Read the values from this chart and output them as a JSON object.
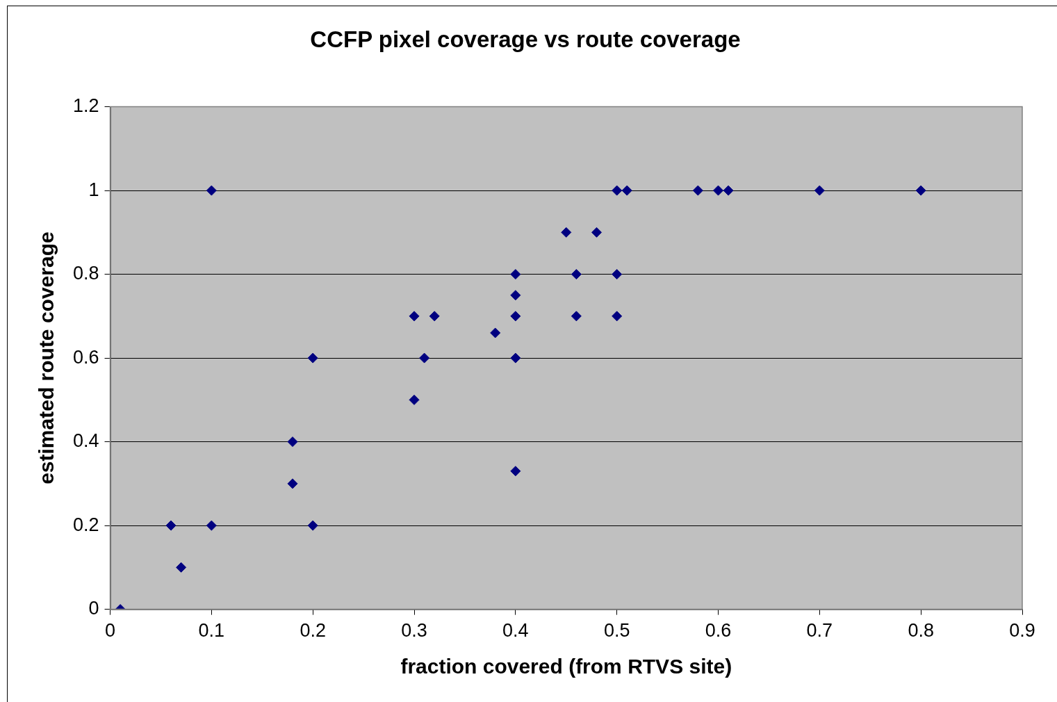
{
  "chart_data": {
    "type": "scatter",
    "title": "CCFP pixel coverage vs route coverage",
    "xlabel": "fraction covered (from RTVS site)",
    "ylabel": "estimated route coverage",
    "x": [
      0.01,
      0.06,
      0.07,
      0.1,
      0.1,
      0.18,
      0.18,
      0.2,
      0.2,
      0.3,
      0.3,
      0.31,
      0.32,
      0.38,
      0.4,
      0.4,
      0.4,
      0.4,
      0.4,
      0.45,
      0.46,
      0.46,
      0.48,
      0.5,
      0.51,
      0.5,
      0.5,
      0.58,
      0.6,
      0.61,
      0.7,
      0.8
    ],
    "values": [
      0,
      0.2,
      0.1,
      0.2,
      1,
      0.4,
      0.3,
      0.6,
      0.2,
      0.7,
      0.5,
      0.6,
      0.7,
      0.66,
      0.8,
      0.75,
      0.7,
      0.6,
      0.33,
      0.9,
      0.8,
      0.7,
      0.9,
      1,
      1,
      0.8,
      0.7,
      1,
      1,
      1,
      1,
      1
    ],
    "color": "#000080",
    "marker": "diamond",
    "grid": "y",
    "legend": false,
    "xlim": [
      0,
      0.9
    ],
    "xticks": [
      0,
      0.1,
      0.2,
      0.3,
      0.4,
      0.5,
      0.6,
      0.7,
      0.8,
      0.9
    ],
    "ylim": [
      0,
      1.2
    ],
    "yticks": [
      0,
      0.2,
      0.4,
      0.6,
      0.8,
      1,
      1.2
    ]
  }
}
